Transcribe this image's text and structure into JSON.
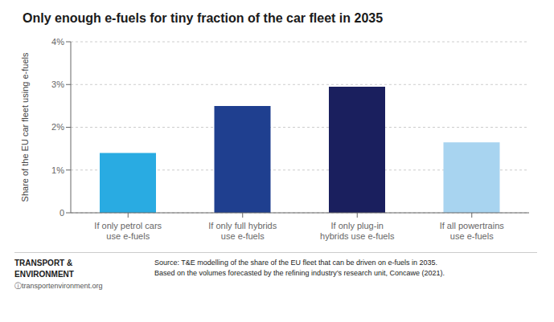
{
  "chart_data": {
    "type": "bar",
    "title": "Only enough e-fuels for tiny fraction of the car fleet in 2035",
    "categories": [
      "If only petrol cars\nuse e-fuels",
      "If only full hybrids\nuse e-fuels",
      "If only plug-in\nhybrids use e-fuels",
      "If all powertrains\nuse e-fuels"
    ],
    "values": [
      1.4,
      2.5,
      2.95,
      1.65
    ],
    "colors": [
      "#29ABE2",
      "#1F3F8F",
      "#1A1F5E",
      "#A8D4F0"
    ],
    "ylabel": "Share of the EU car fleet using e-fuels",
    "ylim": [
      0,
      4.0
    ],
    "yticks": [
      0,
      {
        "value": 1,
        "label": "1%"
      },
      {
        "value": 2,
        "label": "2%"
      },
      {
        "value": 3,
        "label": "3%"
      },
      {
        "value": 4,
        "label": "4%"
      }
    ],
    "grid": true,
    "annotations": [
      "TRANSPORT &",
      "ENVIRONMENT",
      "ⓘtransportenvironment.org",
      "Source: T&E modelling of the share of the EU fleet that can be driven on e-fuels in 2035.\nBased on the volumes forecasted by the refining industry’s research unit, Concawe (2021)."
    ]
  }
}
